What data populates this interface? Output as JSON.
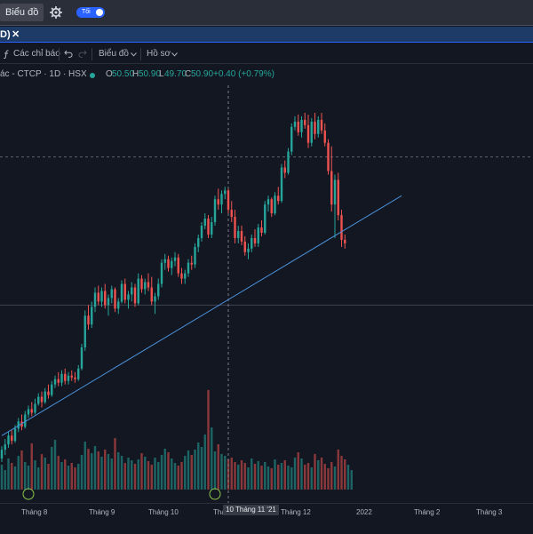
{
  "topbar": {
    "chart_button": "Biểu đồ",
    "settings_icon": "gear-icon",
    "theme_toggle": "Tối"
  },
  "tab": {
    "label": "D)",
    "close": "✕"
  },
  "toolbar": {
    "indicators": "Các chỉ báo",
    "indicators_icon": "function-icon",
    "undo_icon": "undo-icon",
    "redo_icon": "redo-icon",
    "chart_menu": "Biểu đồ",
    "profile_menu": "Hồ sơ"
  },
  "legend": {
    "symbol": "ác - CTCP · 1D · HSX",
    "o_label": "O",
    "o_value": "50.50",
    "h_label": "H",
    "h_value": "50.90",
    "l_label": "L",
    "l_value": "49.70",
    "c_label": "C",
    "c_value": "50.90",
    "change": "+0.40 (+0.79%)"
  },
  "xaxis": {
    "ticks": [
      "Tháng 8",
      "Tháng 9",
      "Tháng 10",
      "Thá",
      "Tháng 12",
      "2022",
      "Tháng 2",
      "Tháng 3"
    ],
    "crosshair_label": "10 Tháng 11 '21"
  },
  "colors": {
    "up": "#26a69a",
    "down": "#ef5350",
    "trendline": "#4a90d9",
    "accent": "#2962ff"
  },
  "chart_data": {
    "type": "candlestick",
    "candles": [
      {
        "o": -0.1,
        "h": 0.6,
        "l": -0.3,
        "c": 0.4
      },
      {
        "o": 0.4,
        "h": 1.0,
        "l": 0.1,
        "c": 0.7
      },
      {
        "o": 0.7,
        "h": 1.4,
        "l": 0.5,
        "c": 1.2
      },
      {
        "o": 1.2,
        "h": 1.5,
        "l": 0.7,
        "c": 0.9
      },
      {
        "o": 0.9,
        "h": 1.8,
        "l": 0.8,
        "c": 1.6
      },
      {
        "o": 1.6,
        "h": 2.2,
        "l": 1.4,
        "c": 2.0
      },
      {
        "o": 2.0,
        "h": 2.4,
        "l": 1.5,
        "c": 1.7
      },
      {
        "o": 1.7,
        "h": 2.6,
        "l": 1.6,
        "c": 2.4
      },
      {
        "o": 2.4,
        "h": 2.9,
        "l": 2.2,
        "c": 2.7
      },
      {
        "o": 2.7,
        "h": 3.1,
        "l": 2.3,
        "c": 2.5
      },
      {
        "o": 2.5,
        "h": 3.3,
        "l": 2.4,
        "c": 3.0
      },
      {
        "o": 3.0,
        "h": 3.6,
        "l": 2.9,
        "c": 3.4
      },
      {
        "o": 3.4,
        "h": 3.7,
        "l": 2.8,
        "c": 3.1
      },
      {
        "o": 3.1,
        "h": 3.9,
        "l": 3.0,
        "c": 3.7
      },
      {
        "o": 3.7,
        "h": 4.1,
        "l": 3.3,
        "c": 3.5
      },
      {
        "o": 3.5,
        "h": 4.3,
        "l": 3.4,
        "c": 4.1
      },
      {
        "o": 4.1,
        "h": 4.6,
        "l": 3.9,
        "c": 4.4
      },
      {
        "o": 4.4,
        "h": 4.8,
        "l": 4.0,
        "c": 4.2
      },
      {
        "o": 4.2,
        "h": 4.9,
        "l": 4.0,
        "c": 4.7
      },
      {
        "o": 4.7,
        "h": 5.0,
        "l": 4.1,
        "c": 4.3
      },
      {
        "o": 4.3,
        "h": 4.8,
        "l": 4.1,
        "c": 4.6
      },
      {
        "o": 4.6,
        "h": 4.9,
        "l": 4.3,
        "c": 4.5
      },
      {
        "o": 4.5,
        "h": 4.8,
        "l": 4.2,
        "c": 4.4
      },
      {
        "o": 4.4,
        "h": 5.2,
        "l": 4.3,
        "c": 5.0
      },
      {
        "o": 5.0,
        "h": 6.4,
        "l": 4.9,
        "c": 6.2
      },
      {
        "o": 6.2,
        "h": 8.3,
        "l": 6.0,
        "c": 8.0
      },
      {
        "o": 8.0,
        "h": 8.6,
        "l": 7.2,
        "c": 7.5
      },
      {
        "o": 7.5,
        "h": 8.8,
        "l": 7.3,
        "c": 8.5
      },
      {
        "o": 8.5,
        "h": 9.6,
        "l": 8.2,
        "c": 9.3
      },
      {
        "o": 9.3,
        "h": 9.7,
        "l": 8.6,
        "c": 8.8
      },
      {
        "o": 8.8,
        "h": 9.6,
        "l": 8.5,
        "c": 9.4
      },
      {
        "o": 9.4,
        "h": 9.8,
        "l": 8.4,
        "c": 8.6
      },
      {
        "o": 8.6,
        "h": 9.2,
        "l": 8.0,
        "c": 9.0
      },
      {
        "o": 9.0,
        "h": 9.7,
        "l": 8.7,
        "c": 9.5
      },
      {
        "o": 9.5,
        "h": 9.6,
        "l": 8.2,
        "c": 8.4
      },
      {
        "o": 8.4,
        "h": 9.0,
        "l": 8.1,
        "c": 8.8
      },
      {
        "o": 8.8,
        "h": 10.0,
        "l": 8.7,
        "c": 9.8
      },
      {
        "o": 9.8,
        "h": 10.1,
        "l": 8.7,
        "c": 8.9
      },
      {
        "o": 8.9,
        "h": 9.4,
        "l": 8.4,
        "c": 9.2
      },
      {
        "o": 9.2,
        "h": 9.9,
        "l": 8.8,
        "c": 9.6
      },
      {
        "o": 9.6,
        "h": 9.8,
        "l": 8.5,
        "c": 8.7
      },
      {
        "o": 8.7,
        "h": 10.4,
        "l": 8.6,
        "c": 10.1
      },
      {
        "o": 10.1,
        "h": 10.3,
        "l": 9.3,
        "c": 9.5
      },
      {
        "o": 9.5,
        "h": 10.1,
        "l": 9.2,
        "c": 9.9
      },
      {
        "o": 9.9,
        "h": 10.4,
        "l": 9.4,
        "c": 9.6
      },
      {
        "o": 9.6,
        "h": 10.2,
        "l": 8.6,
        "c": 8.8
      },
      {
        "o": 8.8,
        "h": 9.3,
        "l": 8.1,
        "c": 9.1
      },
      {
        "o": 9.1,
        "h": 10.1,
        "l": 8.9,
        "c": 9.8
      },
      {
        "o": 9.8,
        "h": 11.2,
        "l": 9.6,
        "c": 11.0
      },
      {
        "o": 11.0,
        "h": 11.5,
        "l": 10.6,
        "c": 11.2
      },
      {
        "o": 11.2,
        "h": 11.4,
        "l": 10.5,
        "c": 10.7
      },
      {
        "o": 10.7,
        "h": 11.3,
        "l": 10.3,
        "c": 11.1
      },
      {
        "o": 11.1,
        "h": 11.6,
        "l": 10.8,
        "c": 11.3
      },
      {
        "o": 11.3,
        "h": 11.5,
        "l": 10.2,
        "c": 10.4
      },
      {
        "o": 10.4,
        "h": 10.7,
        "l": 9.8,
        "c": 10.1
      },
      {
        "o": 10.1,
        "h": 10.6,
        "l": 9.8,
        "c": 10.4
      },
      {
        "o": 10.4,
        "h": 11.2,
        "l": 10.2,
        "c": 11.0
      },
      {
        "o": 11.0,
        "h": 11.4,
        "l": 10.6,
        "c": 10.9
      },
      {
        "o": 10.9,
        "h": 12.1,
        "l": 10.7,
        "c": 11.9
      },
      {
        "o": 11.9,
        "h": 12.6,
        "l": 11.6,
        "c": 12.4
      },
      {
        "o": 12.4,
        "h": 13.3,
        "l": 12.2,
        "c": 13.1
      },
      {
        "o": 13.1,
        "h": 13.8,
        "l": 12.9,
        "c": 13.5
      },
      {
        "o": 13.5,
        "h": 13.7,
        "l": 12.4,
        "c": 12.6
      },
      {
        "o": 12.6,
        "h": 13.6,
        "l": 12.4,
        "c": 13.3
      },
      {
        "o": 13.3,
        "h": 14.8,
        "l": 13.1,
        "c": 14.6
      },
      {
        "o": 14.6,
        "h": 15.2,
        "l": 14.0,
        "c": 14.3
      },
      {
        "o": 14.3,
        "h": 15.1,
        "l": 13.8,
        "c": 14.9
      },
      {
        "o": 14.9,
        "h": 15.3,
        "l": 14.6,
        "c": 15.1
      },
      {
        "o": 15.1,
        "h": 15.2,
        "l": 13.8,
        "c": 14.0
      },
      {
        "o": 14.0,
        "h": 14.5,
        "l": 13.3,
        "c": 13.6
      },
      {
        "o": 13.6,
        "h": 14.0,
        "l": 12.1,
        "c": 12.4
      },
      {
        "o": 12.4,
        "h": 13.1,
        "l": 12.1,
        "c": 12.8
      },
      {
        "o": 12.8,
        "h": 13.1,
        "l": 12.0,
        "c": 12.2
      },
      {
        "o": 12.2,
        "h": 12.5,
        "l": 11.4,
        "c": 11.6
      },
      {
        "o": 11.6,
        "h": 12.1,
        "l": 11.2,
        "c": 11.8
      },
      {
        "o": 11.8,
        "h": 12.6,
        "l": 11.6,
        "c": 12.4
      },
      {
        "o": 12.4,
        "h": 12.9,
        "l": 11.9,
        "c": 12.1
      },
      {
        "o": 12.1,
        "h": 13.2,
        "l": 11.9,
        "c": 13.0
      },
      {
        "o": 13.0,
        "h": 13.4,
        "l": 12.5,
        "c": 12.7
      },
      {
        "o": 12.7,
        "h": 14.5,
        "l": 12.6,
        "c": 14.3
      },
      {
        "o": 14.3,
        "h": 14.8,
        "l": 13.9,
        "c": 14.6
      },
      {
        "o": 14.6,
        "h": 14.7,
        "l": 13.6,
        "c": 13.8
      },
      {
        "o": 13.8,
        "h": 15.0,
        "l": 13.7,
        "c": 14.8
      },
      {
        "o": 14.8,
        "h": 15.3,
        "l": 14.3,
        "c": 14.5
      },
      {
        "o": 14.5,
        "h": 16.6,
        "l": 14.4,
        "c": 16.4
      },
      {
        "o": 16.4,
        "h": 16.8,
        "l": 15.8,
        "c": 16.1
      },
      {
        "o": 16.1,
        "h": 17.5,
        "l": 16.0,
        "c": 17.3
      },
      {
        "o": 17.3,
        "h": 18.9,
        "l": 17.1,
        "c": 18.7
      },
      {
        "o": 18.7,
        "h": 19.3,
        "l": 18.5,
        "c": 19.0
      },
      {
        "o": 19.0,
        "h": 19.4,
        "l": 18.2,
        "c": 18.4
      },
      {
        "o": 18.4,
        "h": 19.3,
        "l": 18.1,
        "c": 19.1
      },
      {
        "o": 19.1,
        "h": 19.5,
        "l": 18.6,
        "c": 18.8
      },
      {
        "o": 18.8,
        "h": 19.4,
        "l": 17.5,
        "c": 17.8
      },
      {
        "o": 17.8,
        "h": 19.2,
        "l": 17.6,
        "c": 19.0
      },
      {
        "o": 19.0,
        "h": 19.5,
        "l": 18.0,
        "c": 18.3
      },
      {
        "o": 18.3,
        "h": 19.3,
        "l": 18.1,
        "c": 19.1
      },
      {
        "o": 19.1,
        "h": 19.5,
        "l": 18.3,
        "c": 18.5
      },
      {
        "o": 18.5,
        "h": 18.9,
        "l": 17.6,
        "c": 17.8
      },
      {
        "o": 17.8,
        "h": 18.0,
        "l": 16.0,
        "c": 16.2
      },
      {
        "o": 16.2,
        "h": 17.6,
        "l": 13.9,
        "c": 14.3
      },
      {
        "o": 14.3,
        "h": 16.0,
        "l": 12.4,
        "c": 15.7
      },
      {
        "o": 15.7,
        "h": 16.1,
        "l": 13.4,
        "c": 13.7
      },
      {
        "o": 13.7,
        "h": 14.0,
        "l": 11.9,
        "c": 12.3
      },
      {
        "o": 12.3,
        "h": 12.6,
        "l": 11.8,
        "c": 12.1
      }
    ],
    "volume": [
      28,
      22,
      35,
      30,
      26,
      38,
      44,
      31,
      27,
      52,
      33,
      25,
      40,
      36,
      29,
      48,
      56,
      38,
      31,
      34,
      27,
      30,
      25,
      29,
      39,
      54,
      46,
      41,
      49,
      43,
      37,
      45,
      40,
      35,
      58,
      42,
      38,
      30,
      36,
      33,
      29,
      34,
      41,
      37,
      32,
      28,
      36,
      31,
      39,
      46,
      42,
      35,
      30,
      27,
      31,
      38,
      44,
      39,
      45,
      53,
      48,
      62,
      112,
      70,
      43,
      51,
      40,
      38,
      34,
      36,
      31,
      28,
      33,
      30,
      25,
      35,
      29,
      32,
      27,
      31,
      26,
      24,
      34,
      28,
      30,
      33,
      27,
      25,
      36,
      42,
      35,
      28,
      30,
      25,
      40,
      33,
      36,
      29,
      24,
      31,
      26,
      45,
      38,
      34,
      28,
      22
    ],
    "trendline": {
      "from_index": 0,
      "from_price": 1.2,
      "to_index": 120,
      "to_price": 14.8
    },
    "horizontal_lines": [
      17.0,
      8.6
    ],
    "crosshair_index": 68
  }
}
